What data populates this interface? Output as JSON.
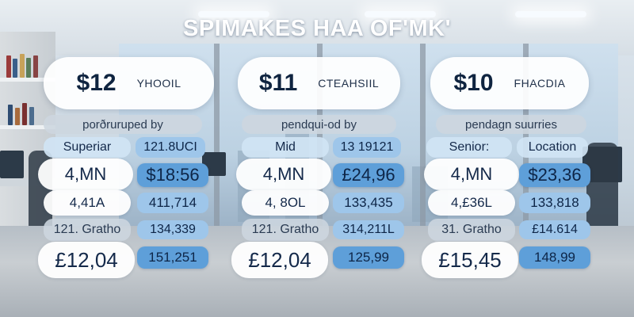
{
  "title": "SPIMAKES HAA OF'MK'",
  "columns": [
    {
      "price": "$12",
      "label": "YHOOIL",
      "subtitle": "porðruruped by",
      "row1": {
        "left": "Superiar",
        "right": "121.8UCI"
      },
      "row2": {
        "left": "4,MN",
        "right": "$18:56"
      },
      "row3": {
        "left": "4,41A",
        "right": "411,714"
      },
      "row4": {
        "left": "121. Gratho",
        "right": "134,339"
      },
      "row5": {
        "left": "£12,04",
        "right": "151,251"
      }
    },
    {
      "price": "$11",
      "label": "CTEAHSIIL",
      "subtitle": "pendqui-od by",
      "row1": {
        "left": "Mid",
        "right": "13 19121"
      },
      "row2": {
        "left": "4,MN",
        "right": "£24,96"
      },
      "row3": {
        "left": "4, 8OL",
        "right": "133,435"
      },
      "row4": {
        "left": "121. Gratho",
        "right": "314,211L"
      },
      "row5": {
        "left": "£12,04",
        "right": "125,99"
      }
    },
    {
      "price": "$10",
      "label": "FHACDIA",
      "subtitle": "pendagn suurries",
      "row1": {
        "left": "Senior:",
        "right": "Location"
      },
      "row2": {
        "left": "4,MN",
        "right": "$23,36"
      },
      "row3": {
        "left": "4,£36L",
        "right": "133,818"
      },
      "row4": {
        "left": "31. Gratho",
        "right": "£14.614"
      },
      "row5": {
        "left": "£15,45",
        "right": "148,99"
      }
    }
  ],
  "colors": {
    "accent_blue": "#5e9fd9",
    "light_blue": "#9ec6ea",
    "title_text": "#ffffff",
    "dark_text": "#0f2440"
  }
}
